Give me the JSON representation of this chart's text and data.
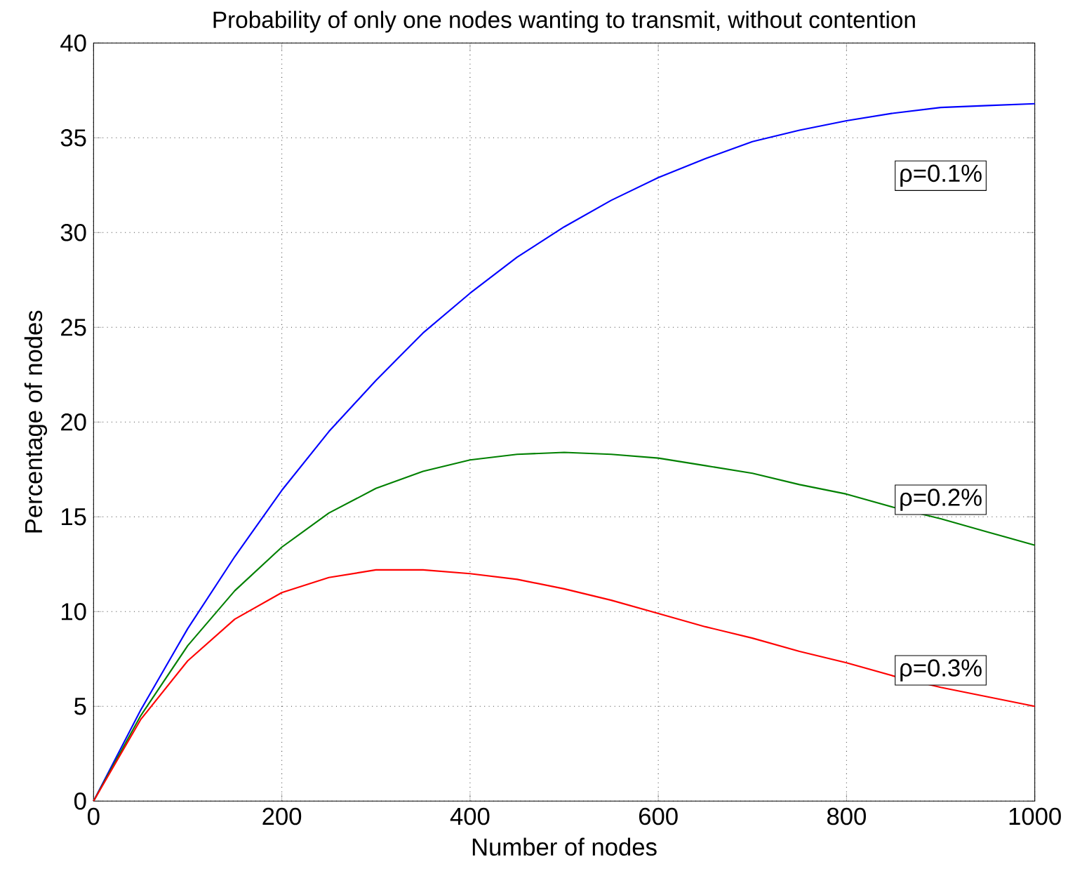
{
  "chart_data": {
    "type": "line",
    "title": "Probability of only one nodes wanting to transmit, without contention",
    "xlabel": "Number of nodes",
    "ylabel": "Percentage of nodes",
    "x": [
      0,
      50,
      100,
      150,
      200,
      250,
      300,
      350,
      400,
      450,
      500,
      550,
      600,
      650,
      700,
      750,
      800,
      850,
      900,
      950,
      1000
    ],
    "series": [
      {
        "name": "ρ=0.1%",
        "color": "#0000ff",
        "values": [
          0,
          4.8,
          9.1,
          12.9,
          16.4,
          19.5,
          22.2,
          24.7,
          26.8,
          28.7,
          30.3,
          31.7,
          32.9,
          33.9,
          34.8,
          35.4,
          35.9,
          36.3,
          36.6,
          36.7,
          36.8
        ]
      },
      {
        "name": "ρ=0.2%",
        "color": "#008000",
        "values": [
          0,
          4.5,
          8.2,
          11.1,
          13.4,
          15.2,
          16.5,
          17.4,
          18.0,
          18.3,
          18.4,
          18.3,
          18.1,
          17.7,
          17.3,
          16.7,
          16.2,
          15.5,
          14.9,
          14.2,
          13.5
        ]
      },
      {
        "name": "ρ=0.3%",
        "color": "#ff0000",
        "values": [
          0,
          4.3,
          7.4,
          9.6,
          11.0,
          11.8,
          12.2,
          12.2,
          12.0,
          11.7,
          11.2,
          10.6,
          9.9,
          9.2,
          8.6,
          7.9,
          7.3,
          6.6,
          6.0,
          5.5,
          5.0
        ]
      }
    ],
    "xlim": [
      0,
      1000
    ],
    "ylim": [
      0,
      40
    ],
    "xticks": [
      0,
      200,
      400,
      600,
      800,
      1000
    ],
    "yticks": [
      0,
      5,
      10,
      15,
      20,
      25,
      30,
      35,
      40
    ],
    "grid": true,
    "line_style": "solid",
    "marker": "none"
  }
}
